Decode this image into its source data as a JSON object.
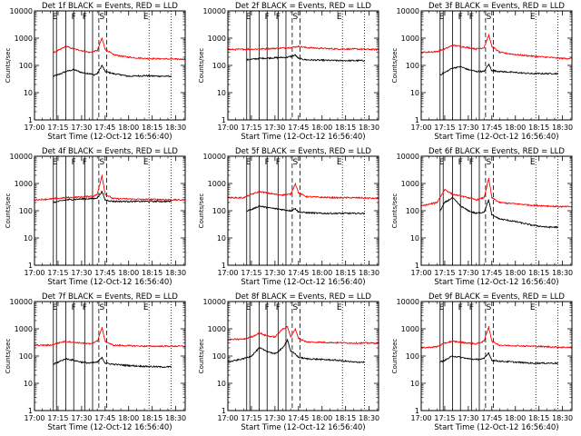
{
  "figure": {
    "xlabel": "Start Time (12-Oct-12 16:56:40)",
    "ylabel": "Counts/sec",
    "x_tick_labels": [
      "17:00",
      "17:15",
      "17:30",
      "17:45",
      "18:00",
      "18:15",
      "18:30"
    ],
    "y_tick_labels": [
      "1",
      "10",
      "100",
      "1000",
      "10000"
    ],
    "markers": [
      {
        "label": "E",
        "time": "17:13"
      },
      {
        "label": "F",
        "time": "17:25"
      },
      {
        "label": "F",
        "time": "17:32"
      },
      {
        "label": "S",
        "time": "17:43"
      },
      {
        "label": "E",
        "time": "18:11"
      }
    ],
    "solid_lines": [
      "17:12",
      "17:14",
      "17:20",
      "17:25",
      "17:32",
      "17:37"
    ],
    "dashed_lines": [
      "17:41",
      "17:46"
    ],
    "dotted_lines": [
      "18:13",
      "18:27"
    ],
    "colors": {
      "events": "#000000",
      "lld": "#ff0000"
    }
  },
  "chart_data": [
    {
      "type": "line",
      "title": "Det 1f BLACK = Events, RED = LLD",
      "xlim": [
        "17:00",
        "18:36"
      ],
      "ylim": [
        1,
        10000
      ],
      "y_scale": "log",
      "series": [
        {
          "name": "Events",
          "color": "#000000",
          "range": [
            "17:12",
            "18:27"
          ],
          "x": [
            "17:12",
            "17:15",
            "17:20",
            "17:25",
            "17:30",
            "17:35",
            "17:38",
            "17:40",
            "17:43",
            "17:45",
            "17:50",
            "17:55",
            "18:00",
            "18:10",
            "18:20",
            "18:27"
          ],
          "y": [
            40,
            45,
            60,
            70,
            55,
            50,
            45,
            50,
            100,
            60,
            50,
            45,
            40,
            42,
            40,
            40
          ]
        },
        {
          "name": "LLD",
          "color": "#ff0000",
          "range": [
            "17:12",
            "18:36"
          ],
          "x": [
            "17:12",
            "17:15",
            "17:20",
            "17:25",
            "17:30",
            "17:35",
            "17:40",
            "17:43",
            "17:45",
            "17:50",
            "17:55",
            "18:00",
            "18:10",
            "18:20",
            "18:30",
            "18:36"
          ],
          "y": [
            300,
            350,
            500,
            400,
            350,
            300,
            350,
            1000,
            400,
            250,
            220,
            200,
            180,
            175,
            170,
            170
          ]
        }
      ]
    },
    {
      "type": "line",
      "title": "Det 2f BLACK = Events, RED = LLD",
      "xlim": [
        "17:00",
        "18:36"
      ],
      "ylim": [
        1,
        10000
      ],
      "y_scale": "log",
      "series": [
        {
          "name": "Events",
          "color": "#000000",
          "range": [
            "17:12",
            "18:27"
          ],
          "x": [
            "17:12",
            "17:20",
            "17:30",
            "17:38",
            "17:40",
            "17:43",
            "17:45",
            "17:50",
            "18:00",
            "18:10",
            "18:20",
            "18:27"
          ],
          "y": [
            160,
            180,
            190,
            200,
            210,
            240,
            180,
            160,
            155,
            150,
            150,
            150
          ]
        },
        {
          "name": "LLD",
          "color": "#ff0000",
          "range": [
            "17:00",
            "18:36"
          ],
          "x": [
            "17:00",
            "17:10",
            "17:20",
            "17:30",
            "17:40",
            "17:45",
            "17:50",
            "18:00",
            "18:10",
            "18:20",
            "18:30",
            "18:36"
          ],
          "y": [
            380,
            390,
            400,
            420,
            450,
            500,
            450,
            420,
            400,
            400,
            390,
            380
          ]
        }
      ]
    },
    {
      "type": "line",
      "title": "Det 3f BLACK = Events, RED = LLD",
      "xlim": [
        "17:00",
        "18:36"
      ],
      "ylim": [
        1,
        10000
      ],
      "y_scale": "log",
      "series": [
        {
          "name": "Events",
          "color": "#000000",
          "range": [
            "17:12",
            "18:27"
          ],
          "x": [
            "17:12",
            "17:15",
            "17:20",
            "17:25",
            "17:30",
            "17:35",
            "17:40",
            "17:43",
            "17:45",
            "17:50",
            "18:00",
            "18:10",
            "18:20",
            "18:27"
          ],
          "y": [
            45,
            55,
            80,
            90,
            70,
            60,
            60,
            110,
            65,
            60,
            55,
            50,
            50,
            50
          ]
        },
        {
          "name": "LLD",
          "color": "#ff0000",
          "range": [
            "17:00",
            "18:36"
          ],
          "x": [
            "17:00",
            "17:10",
            "17:15",
            "17:20",
            "17:25",
            "17:30",
            "17:35",
            "17:40",
            "17:43",
            "17:45",
            "17:50",
            "18:00",
            "18:10",
            "18:20",
            "18:30",
            "18:36"
          ],
          "y": [
            300,
            320,
            400,
            550,
            500,
            450,
            400,
            450,
            1300,
            500,
            300,
            250,
            220,
            200,
            180,
            180
          ]
        }
      ]
    },
    {
      "type": "line",
      "title": "Det 4f BLACK = Events, RED = LLD",
      "xlim": [
        "17:00",
        "18:36"
      ],
      "ylim": [
        1,
        10000
      ],
      "y_scale": "log",
      "series": [
        {
          "name": "Events",
          "color": "#000000",
          "range": [
            "17:12",
            "18:27"
          ],
          "x": [
            "17:12",
            "17:20",
            "17:30",
            "17:38",
            "17:40",
            "17:43",
            "17:45",
            "17:50",
            "18:00",
            "18:10",
            "18:20",
            "18:27"
          ],
          "y": [
            200,
            250,
            270,
            280,
            300,
            500,
            250,
            220,
            220,
            220,
            220,
            220
          ]
        },
        {
          "name": "LLD",
          "color": "#ff0000",
          "range": [
            "17:00",
            "18:36"
          ],
          "x": [
            "17:00",
            "17:10",
            "17:20",
            "17:30",
            "17:38",
            "17:40",
            "17:43",
            "17:45",
            "17:50",
            "18:00",
            "18:10",
            "18:20",
            "18:30",
            "18:36"
          ],
          "y": [
            250,
            270,
            300,
            320,
            350,
            400,
            2000,
            400,
            280,
            270,
            260,
            260,
            250,
            250
          ]
        }
      ]
    },
    {
      "type": "line",
      "title": "Det 5f BLACK = Events, RED = LLD",
      "xlim": [
        "17:00",
        "18:36"
      ],
      "ylim": [
        1,
        10000
      ],
      "y_scale": "log",
      "series": [
        {
          "name": "Events",
          "color": "#000000",
          "range": [
            "17:12",
            "18:27"
          ],
          "x": [
            "17:12",
            "17:15",
            "17:20",
            "17:25",
            "17:30",
            "17:35",
            "17:40",
            "17:43",
            "17:45",
            "17:50",
            "18:00",
            "18:10",
            "18:20",
            "18:27"
          ],
          "y": [
            100,
            110,
            150,
            130,
            120,
            110,
            100,
            120,
            90,
            85,
            80,
            80,
            80,
            80
          ]
        },
        {
          "name": "LLD",
          "color": "#ff0000",
          "range": [
            "17:00",
            "18:36"
          ],
          "x": [
            "17:00",
            "17:10",
            "17:15",
            "17:20",
            "17:25",
            "17:30",
            "17:35",
            "17:40",
            "17:43",
            "17:45",
            "17:50",
            "18:00",
            "18:10",
            "18:20",
            "18:30",
            "18:36"
          ],
          "y": [
            300,
            300,
            400,
            500,
            450,
            400,
            380,
            400,
            1000,
            450,
            330,
            310,
            300,
            300,
            290,
            280
          ]
        }
      ]
    },
    {
      "type": "line",
      "title": "Det 6f BLACK = Events, RED = LLD",
      "xlim": [
        "17:00",
        "18:36"
      ],
      "ylim": [
        1,
        10000
      ],
      "y_scale": "log",
      "series": [
        {
          "name": "Events",
          "color": "#000000",
          "range": [
            "17:12",
            "18:27"
          ],
          "x": [
            "17:12",
            "17:15",
            "17:20",
            "17:25",
            "17:30",
            "17:35",
            "17:40",
            "17:43",
            "17:45",
            "17:50",
            "18:00",
            "18:10",
            "18:20",
            "18:27"
          ],
          "y": [
            100,
            200,
            300,
            150,
            100,
            80,
            90,
            250,
            70,
            50,
            40,
            30,
            25,
            25
          ]
        },
        {
          "name": "LLD",
          "color": "#ff0000",
          "range": [
            "17:00",
            "18:36"
          ],
          "x": [
            "17:00",
            "17:10",
            "17:15",
            "17:20",
            "17:25",
            "17:30",
            "17:35",
            "17:40",
            "17:43",
            "17:45",
            "17:50",
            "18:00",
            "18:10",
            "18:20",
            "18:30",
            "18:36"
          ],
          "y": [
            150,
            200,
            600,
            400,
            350,
            300,
            250,
            300,
            1500,
            300,
            200,
            180,
            160,
            150,
            140,
            140
          ]
        }
      ]
    },
    {
      "type": "line",
      "title": "Det 7f BLACK = Events, RED = LLD",
      "xlim": [
        "17:00",
        "18:36"
      ],
      "ylim": [
        1,
        10000
      ],
      "y_scale": "log",
      "series": [
        {
          "name": "Events",
          "color": "#000000",
          "range": [
            "17:12",
            "18:27"
          ],
          "x": [
            "17:12",
            "17:15",
            "17:20",
            "17:25",
            "17:30",
            "17:35",
            "17:40",
            "17:43",
            "17:45",
            "17:50",
            "18:00",
            "18:10",
            "18:20",
            "18:27"
          ],
          "y": [
            50,
            60,
            80,
            70,
            60,
            55,
            60,
            90,
            55,
            50,
            45,
            42,
            40,
            40
          ]
        },
        {
          "name": "LLD",
          "color": "#ff0000",
          "range": [
            "17:00",
            "18:36"
          ],
          "x": [
            "17:00",
            "17:10",
            "17:15",
            "17:20",
            "17:25",
            "17:30",
            "17:35",
            "17:40",
            "17:43",
            "17:45",
            "17:50",
            "18:00",
            "18:10",
            "18:20",
            "18:30",
            "18:36"
          ],
          "y": [
            250,
            250,
            300,
            350,
            320,
            300,
            280,
            350,
            1100,
            350,
            250,
            240,
            230,
            230,
            230,
            230
          ]
        }
      ]
    },
    {
      "type": "line",
      "title": "Det 8f BLACK = Events, RED = LLD",
      "xlim": [
        "17:00",
        "18:36"
      ],
      "ylim": [
        1,
        10000
      ],
      "y_scale": "log",
      "series": [
        {
          "name": "Events",
          "color": "#000000",
          "range": [
            "17:00",
            "18:27"
          ],
          "x": [
            "17:00",
            "17:10",
            "17:15",
            "17:20",
            "17:25",
            "17:30",
            "17:35",
            "17:38",
            "17:40",
            "17:43",
            "17:45",
            "17:50",
            "18:00",
            "18:10",
            "18:20",
            "18:27"
          ],
          "y": [
            60,
            80,
            100,
            200,
            150,
            120,
            200,
            400,
            150,
            120,
            90,
            80,
            75,
            70,
            60,
            60
          ]
        },
        {
          "name": "LLD",
          "color": "#ff0000",
          "range": [
            "17:00",
            "18:36"
          ],
          "x": [
            "17:00",
            "17:10",
            "17:15",
            "17:20",
            "17:25",
            "17:30",
            "17:35",
            "17:38",
            "17:40",
            "17:43",
            "17:45",
            "17:50",
            "18:00",
            "18:10",
            "18:20",
            "18:30",
            "18:36"
          ],
          "y": [
            400,
            420,
            500,
            700,
            550,
            500,
            1000,
            1200,
            500,
            1000,
            450,
            330,
            320,
            310,
            300,
            300,
            300
          ]
        }
      ]
    },
    {
      "type": "line",
      "title": "Det 9f BLACK = Events, RED = LLD",
      "xlim": [
        "17:00",
        "18:36"
      ],
      "ylim": [
        1,
        10000
      ],
      "y_scale": "log",
      "series": [
        {
          "name": "Events",
          "color": "#000000",
          "range": [
            "17:12",
            "18:27"
          ],
          "x": [
            "17:12",
            "17:15",
            "17:20",
            "17:25",
            "17:30",
            "17:35",
            "17:40",
            "17:43",
            "17:45",
            "17:50",
            "18:00",
            "18:10",
            "18:20",
            "18:27"
          ],
          "y": [
            60,
            70,
            100,
            90,
            80,
            75,
            80,
            130,
            70,
            65,
            60,
            55,
            55,
            55
          ]
        },
        {
          "name": "LLD",
          "color": "#ff0000",
          "range": [
            "17:00",
            "18:36"
          ],
          "x": [
            "17:00",
            "17:10",
            "17:15",
            "17:20",
            "17:25",
            "17:30",
            "17:35",
            "17:40",
            "17:43",
            "17:45",
            "17:50",
            "18:00",
            "18:10",
            "18:20",
            "18:30",
            "18:36"
          ],
          "y": [
            200,
            220,
            300,
            350,
            320,
            300,
            280,
            350,
            1200,
            350,
            250,
            240,
            230,
            220,
            210,
            210
          ]
        }
      ]
    }
  ]
}
